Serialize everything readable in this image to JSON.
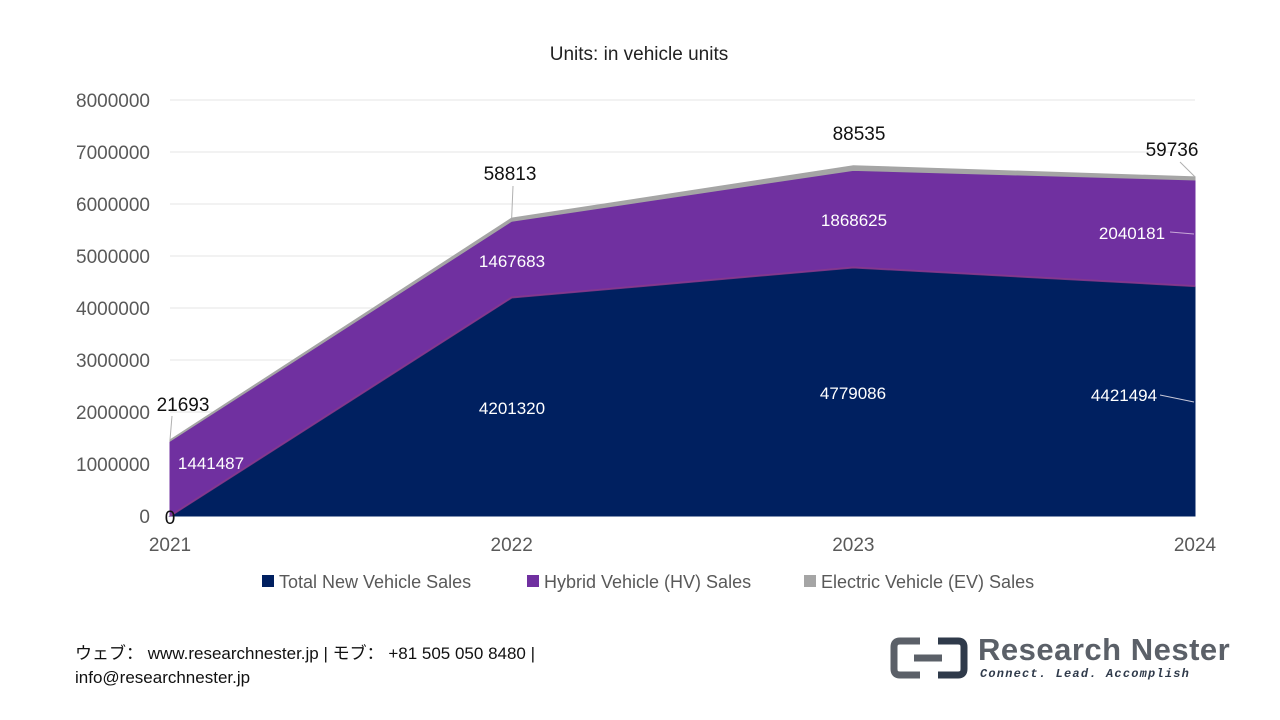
{
  "chart_data": {
    "type": "area",
    "stacked": true,
    "title": "Units: in vehicle units",
    "categories": [
      "2021",
      "2022",
      "2023",
      "2024"
    ],
    "ylim": [
      0,
      8000000
    ],
    "yticks": [
      0,
      1000000,
      2000000,
      3000000,
      4000000,
      5000000,
      6000000,
      7000000,
      8000000
    ],
    "ytick_labels": [
      "0",
      "1000000",
      "2000000",
      "3000000",
      "4000000",
      "5000000",
      "6000000",
      "7000000",
      "8000000"
    ],
    "grid": true,
    "legend_position": "bottom",
    "series": [
      {
        "name": "Total New Vehicle Sales",
        "color": "#002060",
        "values": [
          0,
          4201320,
          4779086,
          4421494
        ]
      },
      {
        "name": "Hybrid Vehicle (HV) Sales",
        "color": "#7030a0",
        "values": [
          1441487,
          1467683,
          1868625,
          2040181
        ]
      },
      {
        "name": "Electric Vehicle (EV) Sales",
        "color": "#a5a5a5",
        "values": [
          21693,
          58813,
          88535,
          59736
        ]
      }
    ]
  },
  "footer": {
    "line1": "ウェブ： www.researchnester.jp | モブ： +81 505 050 8480 |",
    "line2": "info@researchnester.jp"
  },
  "logo": {
    "name": "Research Nester",
    "tagline": "Connect. Lead. Accomplish"
  }
}
